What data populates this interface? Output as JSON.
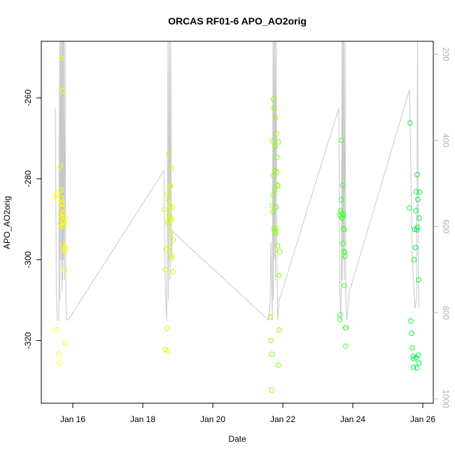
{
  "chart_data": {
    "type": "scatter",
    "title": "ORCAS RF01-6 APO_AO2orig",
    "xlabel": "Date",
    "ylabel": "APO_AO2orig",
    "xlim": [
      15.1,
      26.3
    ],
    "ylim": [
      -335.5,
      -246
    ],
    "y2lim": [
      1010,
      170
    ],
    "x_ticks": [
      {
        "value": 16,
        "label": "Jan 16"
      },
      {
        "value": 18,
        "label": "Jan 18"
      },
      {
        "value": 20,
        "label": "Jan 20"
      },
      {
        "value": 22,
        "label": "Jan 22"
      },
      {
        "value": 24,
        "label": "Jan 24"
      },
      {
        "value": 26,
        "label": "Jan 26"
      }
    ],
    "y_ticks": [
      {
        "value": -260,
        "label": "-260"
      },
      {
        "value": -280,
        "label": "-280"
      },
      {
        "value": -300,
        "label": "-300"
      },
      {
        "value": -320,
        "label": "-320"
      }
    ],
    "y2_ticks": [
      {
        "value": 200,
        "label": "200"
      },
      {
        "value": 400,
        "label": "400"
      },
      {
        "value": 600,
        "label": "600"
      },
      {
        "value": 800,
        "label": "800"
      },
      {
        "value": 1000,
        "label": "1000"
      }
    ],
    "grid": false,
    "series": [
      {
        "color": "#ffff00",
        "points": [
          [
            15.52,
            -284.3
          ],
          [
            15.53,
            -317.3
          ],
          [
            15.55,
            -283.8
          ],
          [
            15.6,
            -323.3
          ],
          [
            15.62,
            -325.6
          ],
          [
            15.63,
            -277.0
          ],
          [
            15.64,
            -291.0
          ],
          [
            15.65,
            -288.8
          ],
          [
            15.66,
            -282.8
          ],
          [
            15.67,
            -250.2
          ],
          [
            15.67,
            -289.3
          ],
          [
            15.68,
            -284.8
          ],
          [
            15.69,
            -291.8
          ],
          [
            15.7,
            -286.1
          ],
          [
            15.71,
            -258.2
          ],
          [
            15.72,
            -290.6
          ],
          [
            15.73,
            -296.2
          ],
          [
            15.74,
            -288.6
          ],
          [
            15.75,
            -297.6
          ],
          [
            15.76,
            -302.6
          ],
          [
            15.77,
            -298.0
          ],
          [
            15.78,
            -320.6
          ],
          [
            15.79,
            -297.0
          ],
          [
            15.8,
            -289.7
          ],
          [
            15.66,
            -286.0
          ],
          [
            15.69,
            -287.3
          ],
          [
            15.72,
            -291.5
          ],
          [
            15.76,
            -291.0
          ]
        ]
      },
      {
        "color": "#ccff00",
        "points": [
          [
            18.62,
            -287.6
          ],
          [
            18.64,
            -302.5
          ],
          [
            18.65,
            -322.2
          ],
          [
            18.67,
            -297.4
          ],
          [
            18.69,
            -317.0
          ],
          [
            18.7,
            -322.6
          ],
          [
            18.72,
            -290.4
          ],
          [
            18.73,
            -285.2
          ],
          [
            18.74,
            -273.9
          ],
          [
            18.75,
            -289.0
          ],
          [
            18.77,
            -281.8
          ],
          [
            18.78,
            -286.9
          ],
          [
            18.79,
            -281.8
          ],
          [
            18.8,
            -289.5
          ],
          [
            18.81,
            -277.4
          ],
          [
            18.82,
            -290.3
          ],
          [
            18.83,
            -299.6
          ],
          [
            18.85,
            -287.0
          ],
          [
            18.86,
            -303.0
          ],
          [
            18.87,
            -295.1
          ],
          [
            18.7,
            -283.8
          ],
          [
            18.73,
            -291.0
          ],
          [
            18.76,
            -296.8
          ],
          [
            18.79,
            -293.1
          ],
          [
            18.82,
            -299.0
          ]
        ]
      },
      {
        "color": "#88ff00",
        "points": [
          [
            21.64,
            -314.2
          ],
          [
            21.66,
            -320.0
          ],
          [
            21.68,
            -332.3
          ],
          [
            21.69,
            -323.4
          ],
          [
            21.7,
            -286.7
          ],
          [
            21.71,
            -270.7
          ],
          [
            21.72,
            -288.2
          ],
          [
            21.73,
            -260.3
          ],
          [
            21.74,
            -279.2
          ],
          [
            21.75,
            -262.5
          ],
          [
            21.76,
            -282.6
          ],
          [
            21.77,
            -293.0
          ],
          [
            21.78,
            -272.0
          ],
          [
            21.79,
            -264.9
          ],
          [
            21.8,
            -293.5
          ],
          [
            21.81,
            -292.2
          ],
          [
            21.82,
            -268.9
          ],
          [
            21.83,
            -278.4
          ],
          [
            21.84,
            -274.7
          ],
          [
            21.85,
            -296.6
          ],
          [
            21.86,
            -281.8
          ],
          [
            21.87,
            -326.1
          ],
          [
            21.88,
            -270.9
          ],
          [
            21.89,
            -303.9
          ],
          [
            21.9,
            -317.4
          ],
          [
            21.91,
            -298.0
          ],
          [
            21.72,
            -284.0
          ],
          [
            21.75,
            -292.4
          ],
          [
            21.78,
            -278.0
          ],
          [
            21.81,
            -287.0
          ],
          [
            21.84,
            -281.5
          ]
        ]
      },
      {
        "color": "#44ff33",
        "points": [
          [
            23.62,
            -289.0
          ],
          [
            23.63,
            -314.8
          ],
          [
            23.64,
            -313.6
          ],
          [
            23.65,
            -287.9
          ],
          [
            23.67,
            -285.2
          ],
          [
            23.68,
            -270.5
          ],
          [
            23.69,
            -288.5
          ],
          [
            23.7,
            -289.5
          ],
          [
            23.71,
            -281.6
          ],
          [
            23.72,
            -296.0
          ],
          [
            23.73,
            -289.0
          ],
          [
            23.74,
            -292.3
          ],
          [
            23.75,
            -298.0
          ],
          [
            23.76,
            -306.4
          ],
          [
            23.77,
            -298.2
          ],
          [
            23.78,
            -299.2
          ],
          [
            23.79,
            -316.8
          ],
          [
            23.8,
            -321.4
          ],
          [
            23.81,
            -316.8
          ],
          [
            23.69,
            -289.8
          ],
          [
            23.72,
            -288.8
          ],
          [
            23.75,
            -292.6
          ]
        ]
      },
      {
        "color": "#00ee44",
        "points": [
          [
            25.62,
            -287.2
          ],
          [
            25.64,
            -266.2
          ],
          [
            25.66,
            -315.2
          ],
          [
            25.68,
            -318.2
          ],
          [
            25.7,
            -321.8
          ],
          [
            25.72,
            -323.9
          ],
          [
            25.73,
            -326.6
          ],
          [
            25.74,
            -324.5
          ],
          [
            25.75,
            -300.0
          ],
          [
            25.77,
            -292.5
          ],
          [
            25.79,
            -297.0
          ],
          [
            25.8,
            -287.9
          ],
          [
            25.81,
            -324.3
          ],
          [
            25.82,
            -283.2
          ],
          [
            25.83,
            -326.8
          ],
          [
            25.84,
            -279.0
          ],
          [
            25.85,
            -292.0
          ],
          [
            25.86,
            -285.1
          ],
          [
            25.87,
            -323.6
          ],
          [
            25.88,
            -305.0
          ],
          [
            25.89,
            -325.6
          ],
          [
            25.9,
            -289.7
          ],
          [
            25.91,
            -283.3
          ],
          [
            25.83,
            -292.6
          ]
        ]
      }
    ],
    "alt_series": {
      "color": "#c8c8c8",
      "points": [
        [
          15.5,
          -262.5
        ],
        [
          15.53,
          -309.0
        ],
        [
          15.56,
          -315.0
        ],
        [
          15.6,
          -315.0
        ],
        [
          15.62,
          -246
        ],
        [
          15.63,
          -310.0
        ],
        [
          15.65,
          -246
        ],
        [
          15.66,
          -300.0
        ],
        [
          15.68,
          -246
        ],
        [
          15.69,
          -308.0
        ],
        [
          15.7,
          -246
        ],
        [
          15.71,
          -305.0
        ],
        [
          15.72,
          -246
        ],
        [
          15.73,
          -300.0
        ],
        [
          15.74,
          -246
        ],
        [
          15.76,
          -305.0
        ],
        [
          15.78,
          -246
        ],
        [
          15.8,
          -310.0
        ],
        [
          15.82,
          -315.0
        ],
        [
          15.9,
          -314.5
        ],
        [
          18.6,
          -278.0
        ],
        [
          18.64,
          -305.0
        ],
        [
          18.68,
          -315.0
        ],
        [
          18.7,
          -300.0
        ],
        [
          18.72,
          -246
        ],
        [
          18.73,
          -310.0
        ],
        [
          18.76,
          -246
        ],
        [
          18.78,
          -305.0
        ],
        [
          18.8,
          -246
        ],
        [
          18.82,
          -300.0
        ],
        [
          18.85,
          -293.0
        ],
        [
          21.6,
          -315.0
        ],
        [
          21.64,
          -310.0
        ],
        [
          21.66,
          -295.5
        ],
        [
          21.68,
          -305.0
        ],
        [
          21.7,
          -315.0
        ],
        [
          21.72,
          -246
        ],
        [
          21.73,
          -310.0
        ],
        [
          21.75,
          -246
        ],
        [
          21.76,
          -300.0
        ],
        [
          21.78,
          -246
        ],
        [
          21.79,
          -305.0
        ],
        [
          21.81,
          -246
        ],
        [
          21.83,
          -295.0
        ],
        [
          21.85,
          -315.0
        ],
        [
          21.9,
          -310.0
        ],
        [
          23.6,
          -262.5
        ],
        [
          23.63,
          -308.0
        ],
        [
          23.66,
          -315.0
        ],
        [
          23.68,
          -300.0
        ],
        [
          23.69,
          -246
        ],
        [
          23.7,
          -305.0
        ],
        [
          23.72,
          -246
        ],
        [
          23.73,
          -300.0
        ],
        [
          23.74,
          -246
        ],
        [
          23.76,
          -305.0
        ],
        [
          23.78,
          -246
        ],
        [
          23.8,
          -310.0
        ],
        [
          23.83,
          -315.0
        ],
        [
          23.9,
          -308.0
        ],
        [
          25.62,
          -258.0
        ],
        [
          25.7,
          -300.0
        ],
        [
          25.78,
          -312.0
        ],
        [
          25.82,
          -310.0
        ],
        [
          25.85,
          -246
        ],
        [
          25.88,
          -312.0
        ]
      ]
    }
  }
}
